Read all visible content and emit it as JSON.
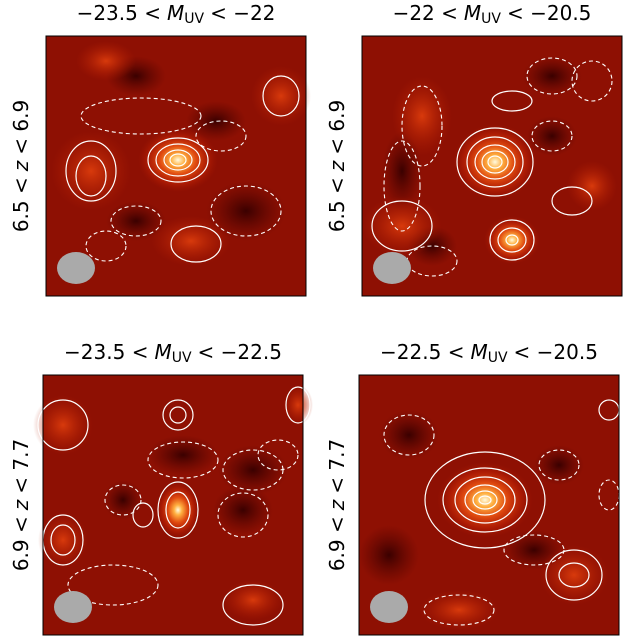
{
  "panels": [
    {
      "title": {
        "pre": "−23.5 <",
        "var": "M",
        "sub": "UV",
        "post": "< −22"
      },
      "row_label": {
        "pre": "6.5 <",
        "var": "z",
        "post": "< 6.9"
      }
    },
    {
      "title": {
        "pre": "−22 <",
        "var": "M",
        "sub": "UV",
        "post": "< −20.5"
      },
      "row_label": {
        "pre": "6.5 <",
        "var": "z",
        "post": "< 6.9"
      }
    },
    {
      "title": {
        "pre": "−23.5 <",
        "var": "M",
        "sub": "UV",
        "post": "< −22.5"
      },
      "row_label": {
        "pre": "6.9 <",
        "var": "z",
        "post": "< 7.7"
      }
    },
    {
      "title": {
        "pre": "−22.5 <",
        "var": "M",
        "sub": "UV",
        "post": "< −20.5"
      },
      "row_label": {
        "pre": "6.9 <",
        "var": "z",
        "post": "< 7.7"
      }
    }
  ]
}
